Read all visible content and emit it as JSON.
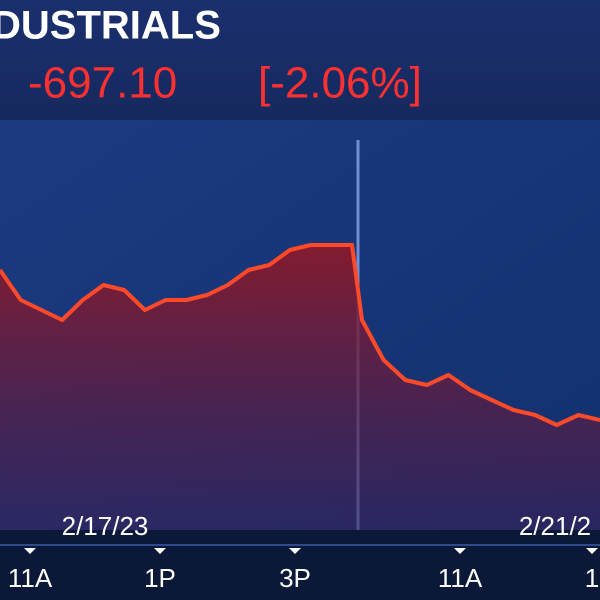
{
  "chart_data": {
    "type": "area",
    "title": "DUSTRIALS",
    "change": "-697.10",
    "change_percent": "[-2.06%]",
    "categories": [
      null,
      null,
      null,
      null,
      null,
      null,
      null,
      null,
      null,
      null,
      null,
      null,
      null,
      null,
      null,
      null,
      null,
      null,
      null,
      null,
      null,
      null,
      null,
      null,
      null,
      null,
      null,
      null,
      null,
      null
    ],
    "values": [
      33730,
      33610,
      33570,
      33530,
      33610,
      33670,
      33650,
      33570,
      33610,
      33610,
      33630,
      33670,
      33730,
      33750,
      33810,
      33830,
      33830,
      33830,
      33530,
      33370,
      33290,
      33270,
      33310,
      33250,
      33210,
      33170,
      33150,
      33110,
      33150,
      33130
    ],
    "color": "#ff4a2a",
    "ylim": [
      32770,
      34250
    ],
    "dates": [
      "2/17/23",
      "2/21/2"
    ],
    "time_labels": [
      "11A",
      "1P",
      "3P",
      "11A",
      "1"
    ]
  }
}
